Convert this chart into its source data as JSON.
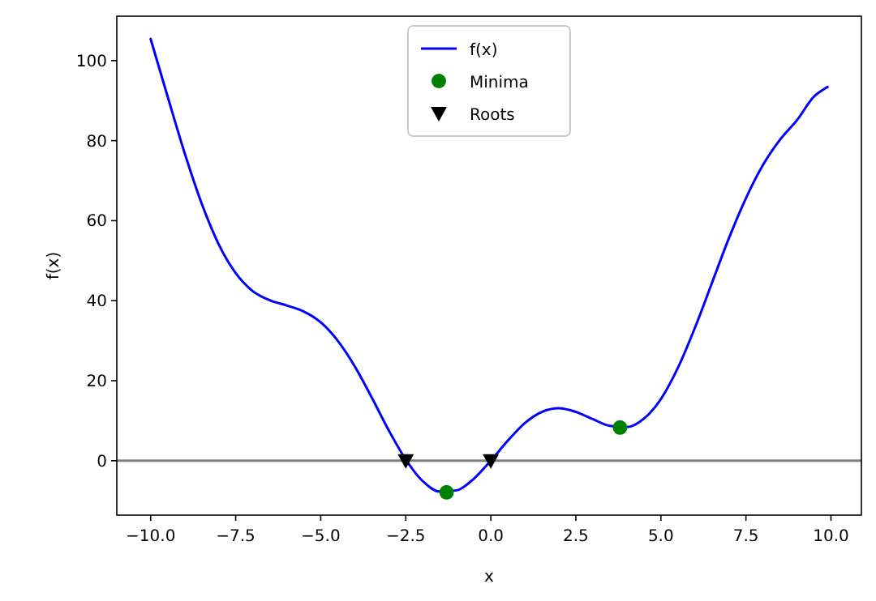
{
  "chart_data": {
    "type": "line",
    "xlabel": "x",
    "ylabel": "f(x)",
    "xlim": [
      -10.995,
      10.895
    ],
    "ylim": [
      -13.6,
      111.1
    ],
    "xticks": [
      {
        "value": -10,
        "label": "−10.0"
      },
      {
        "value": -7.5,
        "label": "−7.5"
      },
      {
        "value": -5,
        "label": "−5.0"
      },
      {
        "value": -2.5,
        "label": "−2.5"
      },
      {
        "value": 0,
        "label": "0.0"
      },
      {
        "value": 2.5,
        "label": "2.5"
      },
      {
        "value": 5,
        "label": "5.0"
      },
      {
        "value": 7.5,
        "label": "7.5"
      },
      {
        "value": 10,
        "label": "10.0"
      }
    ],
    "yticks": [
      0,
      20,
      40,
      60,
      80,
      100
    ],
    "grid": false,
    "legend": "top",
    "ref_lines": [
      {
        "axis": "y",
        "value": 0,
        "color": "#808080"
      }
    ],
    "series": [
      {
        "name": "f(x)",
        "color": "#0000ff",
        "marker": "none",
        "line_style": "solid",
        "x": [
          -10,
          -9.5,
          -9,
          -8.5,
          -8,
          -7.5,
          -7,
          -6.5,
          -6,
          -5.5,
          -5,
          -4.5,
          -4,
          -3.5,
          -3,
          -2.5,
          -2,
          -1.5,
          -1,
          -0.5,
          0,
          0.5,
          1,
          1.5,
          2,
          2.5,
          3,
          3.5,
          4,
          4.5,
          5,
          5.5,
          6,
          6.5,
          7,
          7.5,
          8,
          8.5,
          9,
          9.5,
          9.9
        ],
        "values": [
          105.4,
          91.0,
          76.9,
          64.3,
          54.1,
          46.9,
          42.4,
          40.1,
          38.8,
          37.3,
          34.6,
          30.0,
          23.6,
          15.8,
          7.6,
          0.3,
          -5.1,
          -7.7,
          -7.4,
          -4.5,
          0,
          5.0,
          9.4,
          12.2,
          13.1,
          12.2,
          10.4,
          8.7,
          8.4,
          10.5,
          15.4,
          23.2,
          33.2,
          44.4,
          55.6,
          65.6,
          73.9,
          80.2,
          85.1,
          91.0,
          93.4
        ]
      },
      {
        "name": "Minima",
        "type": "scatter",
        "color": "#008000",
        "marker": "circle",
        "x": [
          -1.3,
          3.8
        ],
        "values": [
          -7.9,
          8.3
        ]
      },
      {
        "name": "Roots",
        "type": "scatter",
        "color": "#000000",
        "marker": "triangle",
        "x": [
          -2.5,
          0
        ],
        "values": [
          0,
          0
        ]
      }
    ]
  }
}
